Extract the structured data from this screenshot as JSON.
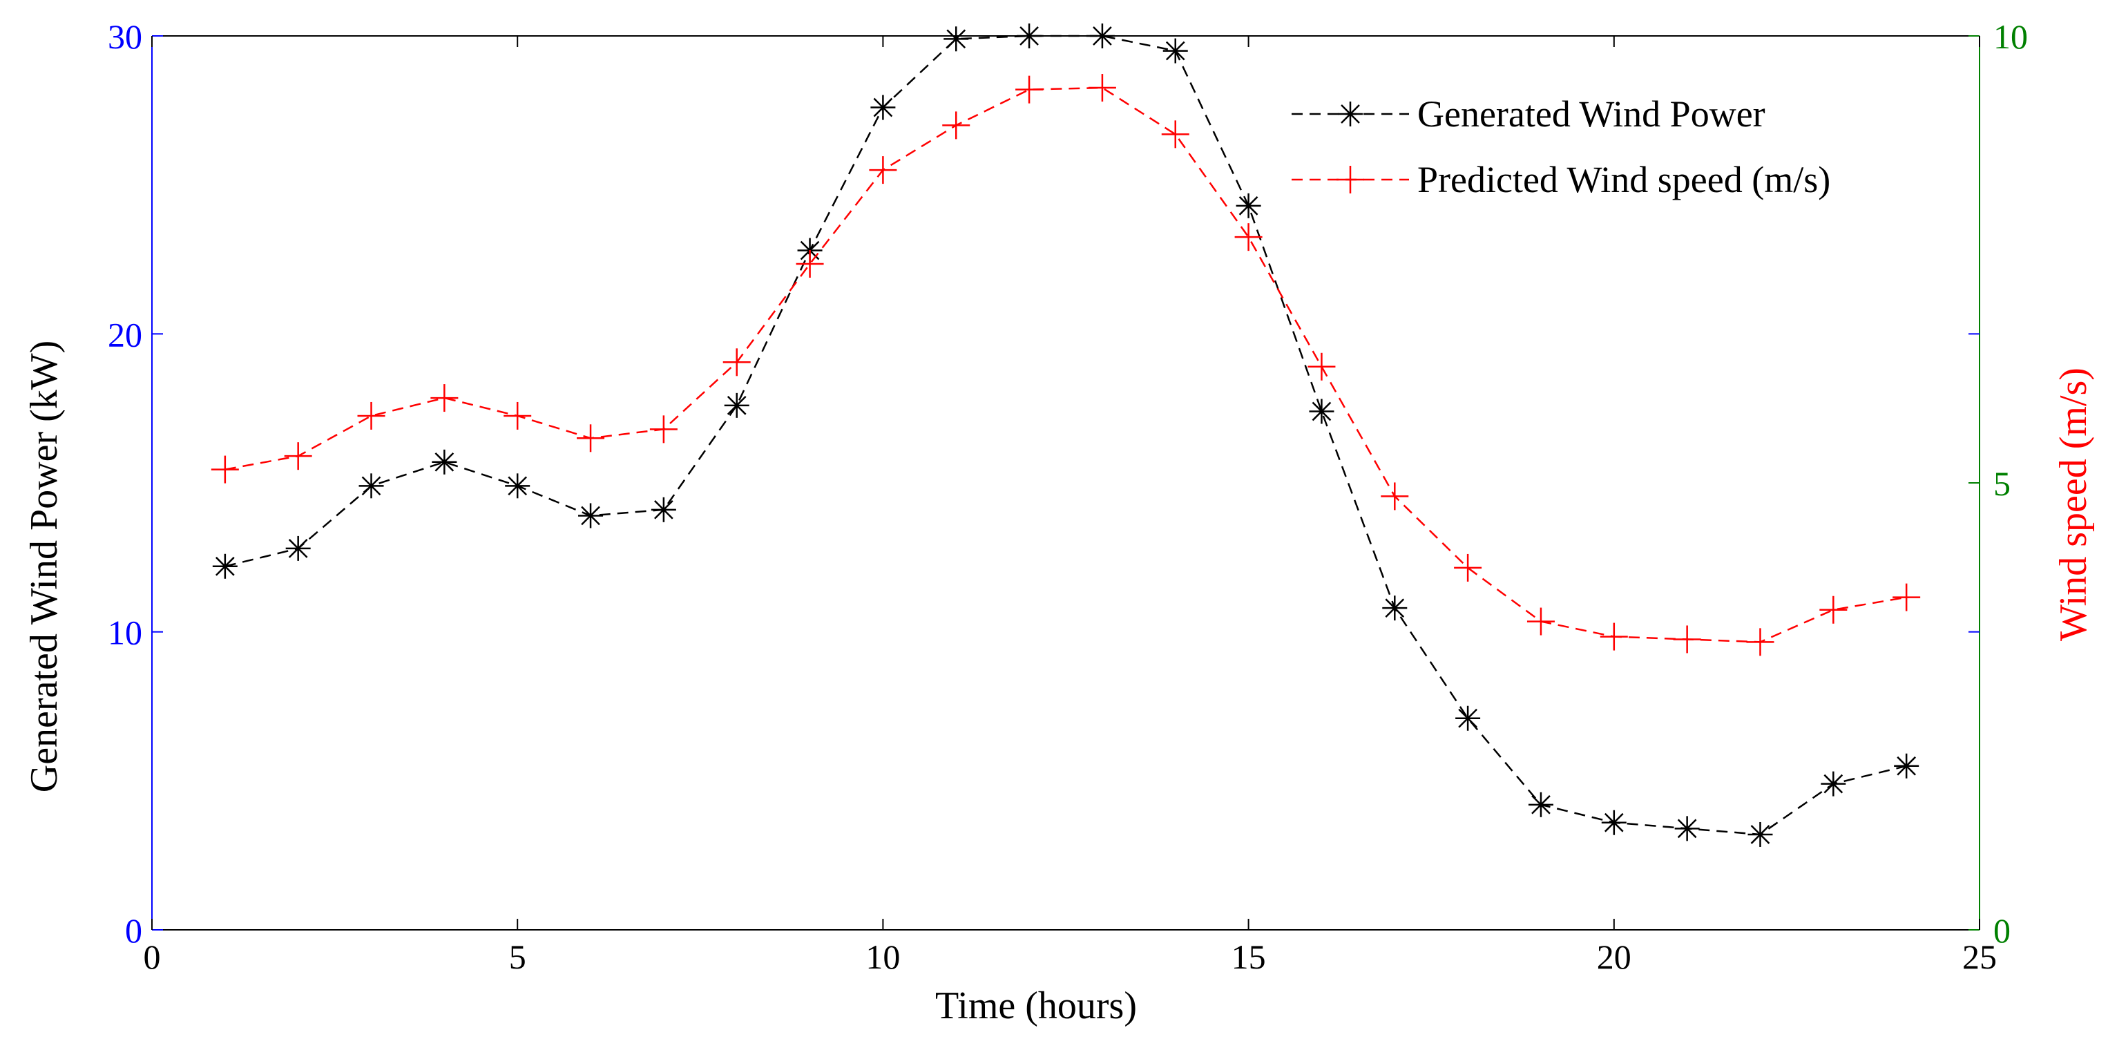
{
  "chart_data": {
    "type": "line",
    "title": "",
    "xlabel": "Time (hours)",
    "ylabel_left": "Generated Wind Power (kW)",
    "ylabel_right": "Wind speed (m/s)",
    "xlim": [
      0,
      25
    ],
    "ylim_left": [
      0,
      30
    ],
    "ylim_right": [
      0,
      10
    ],
    "x_ticks": [
      0,
      5,
      10,
      15,
      20,
      25
    ],
    "y_left_ticks": [
      0,
      10,
      20,
      30
    ],
    "y_right_ticks": [
      0,
      5,
      10
    ],
    "grid": false,
    "legend_position": "top-right",
    "x": [
      1,
      2,
      3,
      4,
      5,
      6,
      7,
      8,
      9,
      10,
      11,
      12,
      13,
      14,
      15,
      16,
      17,
      18,
      19,
      20,
      21,
      22,
      23,
      24
    ],
    "series": [
      {
        "name": "Generated Wind Power",
        "axis": "left",
        "color": "#000000",
        "marker": "asterisk",
        "line_style": "dashed",
        "values": [
          12.2,
          12.8,
          14.9,
          15.7,
          14.9,
          13.9,
          14.1,
          17.6,
          22.8,
          27.6,
          29.9,
          30.0,
          30.0,
          29.5,
          24.3,
          17.4,
          10.8,
          7.1,
          4.2,
          3.6,
          3.4,
          3.2,
          4.9,
          5.5
        ]
      },
      {
        "name": "Predicted Wind speed (m/s)",
        "axis": "right",
        "color": "#ff0000",
        "marker": "plus",
        "line_style": "dashed",
        "values": [
          5.15,
          5.3,
          5.75,
          5.95,
          5.75,
          5.5,
          5.6,
          6.35,
          7.45,
          8.5,
          9.0,
          9.4,
          9.42,
          8.9,
          7.75,
          6.3,
          4.85,
          4.05,
          3.45,
          3.28,
          3.25,
          3.22,
          3.58,
          3.72
        ]
      }
    ]
  },
  "colors": {
    "left_axis_tick": "#0000ff",
    "right_axis_tick": "#008000",
    "right_axis_label": "#ff0000",
    "axis_frame": "#000000"
  }
}
